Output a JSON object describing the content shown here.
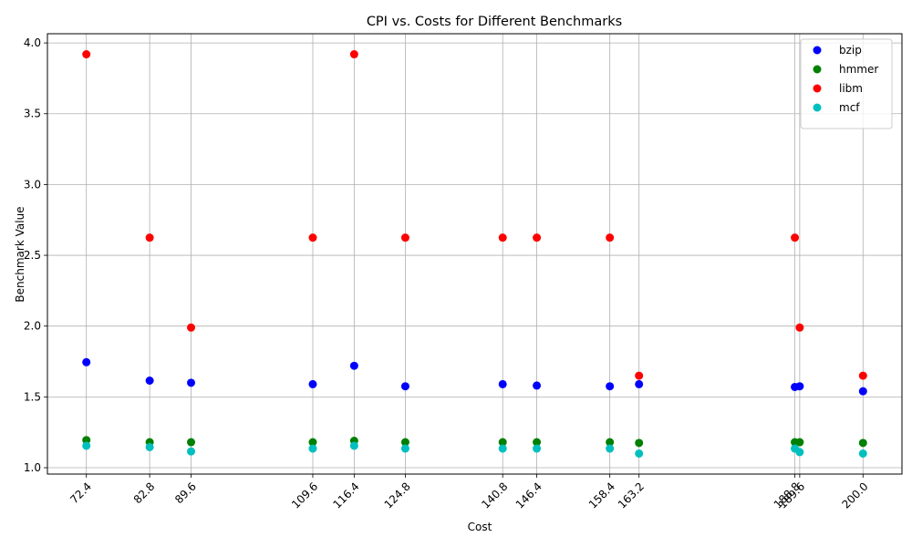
{
  "chart_data": {
    "type": "scatter",
    "title": "CPI vs. Costs for Different Benchmarks",
    "xlabel": "Cost",
    "ylabel": "Benchmark Value",
    "xlim": [
      66.0,
      206.4
    ],
    "ylim": [
      0.955,
      4.065
    ],
    "xticks": [
      72.4,
      82.8,
      89.6,
      109.6,
      116.4,
      124.8,
      140.8,
      146.4,
      158.4,
      163.2,
      188.8,
      189.6,
      200.0
    ],
    "xtick_labels": [
      "72.4",
      "82.8",
      "89.6",
      "109.6",
      "116.4",
      "124.8",
      "140.8",
      "146.4",
      "158.4",
      "163.2",
      "188.8",
      "189.6",
      "200.0"
    ],
    "yticks": [
      1.0,
      1.5,
      2.0,
      2.5,
      3.0,
      3.5,
      4.0
    ],
    "ytick_labels": [
      "1.0",
      "1.5",
      "2.0",
      "2.5",
      "3.0",
      "3.5",
      "4.0"
    ],
    "grid": true,
    "legend_position": "top-right",
    "x": [
      72.4,
      82.8,
      89.6,
      109.6,
      116.4,
      124.8,
      140.8,
      146.4,
      158.4,
      163.2,
      188.8,
      189.6,
      200.0
    ],
    "series": [
      {
        "name": "bzip",
        "color": "#0000ff",
        "values": [
          1.745,
          1.615,
          1.6,
          1.59,
          1.72,
          1.575,
          1.59,
          1.58,
          1.575,
          1.59,
          1.57,
          1.575,
          1.54
        ]
      },
      {
        "name": "hmmer",
        "color": "#008000",
        "values": [
          1.195,
          1.18,
          1.18,
          1.18,
          1.19,
          1.18,
          1.18,
          1.18,
          1.18,
          1.175,
          1.18,
          1.18,
          1.175
        ]
      },
      {
        "name": "libm",
        "color": "#ff0000",
        "values": [
          3.92,
          2.625,
          1.99,
          2.625,
          3.92,
          2.625,
          2.625,
          2.625,
          2.625,
          1.65,
          2.625,
          1.99,
          1.65
        ]
      },
      {
        "name": "mcf",
        "color": "#00bfbf",
        "values": [
          1.155,
          1.145,
          1.115,
          1.135,
          1.155,
          1.135,
          1.135,
          1.135,
          1.135,
          1.1,
          1.135,
          1.11,
          1.1
        ]
      }
    ]
  }
}
